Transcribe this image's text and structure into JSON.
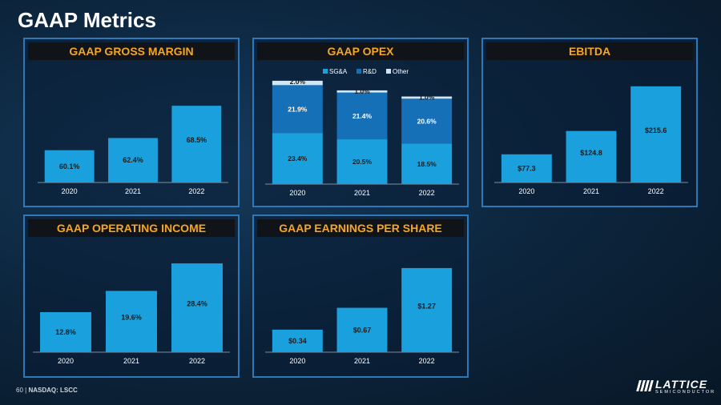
{
  "title": "GAAP Metrics",
  "footer": {
    "page": "60",
    "separator": "|",
    "ticker": "NASDAQ: LSCC"
  },
  "logo": {
    "name": "LATTICE",
    "sub": "SEMICONDUCTOR"
  },
  "colors": {
    "bar": "#1aa0dc",
    "sga": "#1aa0dc",
    "rnd": "#1670b8",
    "other": "#cfe6f5",
    "heading": "#f5a623",
    "border": "#2f78b8"
  },
  "chart_data": [
    {
      "id": "gross-margin",
      "type": "bar",
      "title": "GAAP GROSS MARGIN",
      "categories": [
        "2020",
        "2021",
        "2022"
      ],
      "values": [
        60.1,
        62.4,
        68.5
      ],
      "labels": [
        "60.1%",
        "62.4%",
        "68.5%"
      ],
      "ylim": [
        54,
        72
      ]
    },
    {
      "id": "opex",
      "type": "bar",
      "stacked": true,
      "title": "GAAP OPEX",
      "categories": [
        "2020",
        "2021",
        "2022"
      ],
      "legend": [
        "SG&A",
        "R&D",
        "Other"
      ],
      "series": [
        {
          "name": "SG&A",
          "values": [
            23.4,
            20.5,
            18.5
          ],
          "labels": [
            "23.4%",
            "20.5%",
            "18.5%"
          ]
        },
        {
          "name": "R&D",
          "values": [
            21.9,
            21.4,
            20.6
          ],
          "labels": [
            "21.9%",
            "21.4%",
            "20.6%"
          ]
        },
        {
          "name": "Other",
          "values": [
            2.0,
            1.0,
            1.0
          ],
          "labels": [
            "2.0%",
            "1.0%",
            "1.0%"
          ]
        }
      ],
      "ylim": [
        0,
        48
      ]
    },
    {
      "id": "ebitda",
      "type": "bar",
      "title": "EBITDA",
      "categories": [
        "2020",
        "2021",
        "2022"
      ],
      "values": [
        77.3,
        124.8,
        215.6
      ],
      "labels": [
        "$77.3",
        "$124.8",
        "$215.6"
      ],
      "ylim": [
        20,
        230
      ]
    },
    {
      "id": "operating-income",
      "type": "bar",
      "title": "GAAP OPERATING INCOME",
      "categories": [
        "2020",
        "2021",
        "2022"
      ],
      "values": [
        12.8,
        19.6,
        28.4
      ],
      "labels": [
        "12.8%",
        "19.6%",
        "28.4%"
      ],
      "ylim": [
        0,
        32
      ]
    },
    {
      "id": "eps",
      "type": "bar",
      "title": "GAAP EARNINGS PER SHARE",
      "categories": [
        "2020",
        "2021",
        "2022"
      ],
      "values": [
        0.34,
        0.67,
        1.27
      ],
      "labels": [
        "$0.34",
        "$0.67",
        "$1.27"
      ],
      "ylim": [
        0,
        1.45
      ]
    }
  ]
}
